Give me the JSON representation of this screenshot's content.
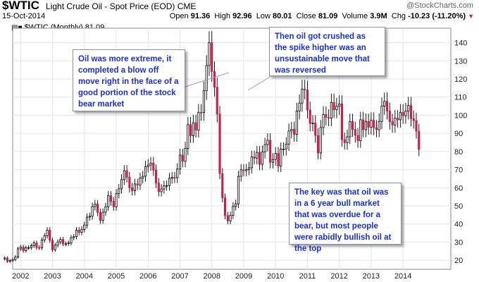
{
  "header": {
    "ticker": "$WTIC",
    "description": "Light Crude Oil - Spot Price (EOD)",
    "exchange": "CME",
    "date": "15-Oct-2014",
    "open_label": "Open",
    "open": "91.36",
    "high_label": "High",
    "high": "92.96",
    "low_label": "Low",
    "low": "80.01",
    "close_label": "Close",
    "close": "81.09",
    "volume_label": "Volume",
    "volume": "3.9M",
    "chg_label": "Chg",
    "chg": "-10.23 (-11.20%)",
    "watermark": "@StockCharts.com",
    "series_label": "$WTIC (Monthly) 81.09",
    "series_icon": "candle-legend-icon"
  },
  "annotations": [
    "Oil was more extreme, it completed a blow off move right in the face of a good portion of the stock bear market",
    "Then oil got crushed as the spike higher was an unsustainable move that was reversed",
    "The key was that oil was in a 6 year bull market that was overdue for a bear, but most people were rabidly bullish oil at the top"
  ],
  "colors": {
    "up": "#ffffff",
    "down": "#cc1e4a",
    "wick": "#000000",
    "grid": "#e6e6e6",
    "note_text": "#1a2fd8"
  },
  "chart_data": {
    "type": "candlestick",
    "period": "monthly",
    "xlabel": "",
    "ylabel": "",
    "x_ticks": [
      "2002",
      "2003",
      "2004",
      "2005",
      "2006",
      "2007",
      "2008",
      "2009",
      "2010",
      "2011",
      "2012",
      "2013",
      "2014"
    ],
    "y_ticks": [
      20,
      30,
      40,
      50,
      60,
      70,
      80,
      90,
      100,
      110,
      120,
      130,
      140
    ],
    "ylim": [
      15,
      148
    ],
    "grid": true,
    "series": [
      {
        "name": "$WTIC",
        "start": "2001-10",
        "close": [
          21.2,
          19.4,
          19.8,
          20.4,
          21.8,
          26.3,
          27.3,
          25.3,
          26.9,
          27.0,
          28.0,
          29.5,
          27.0,
          26.9,
          31.2,
          33.5,
          36.6,
          31.0,
          25.8,
          28.3,
          30.1,
          31.5,
          29.0,
          29.1,
          29.5,
          32.5,
          33.0,
          36.6,
          35.4,
          37.0,
          39.4,
          43.8,
          44.3,
          49.6,
          51.0,
          46.4,
          42.0,
          46.5,
          49.5,
          55.6,
          52.5,
          49.5,
          56.7,
          59.4,
          64.5,
          69.4,
          65.8,
          60.0,
          58.4,
          62.1,
          61.5,
          65.3,
          66.3,
          71.6,
          72.5,
          73.6,
          69.7,
          62.6,
          57.8,
          59.3,
          61.1,
          61.2,
          65.2,
          65.7,
          65.5,
          70.3,
          78.0,
          74.6,
          81.7,
          94.8,
          88.7,
          95.9,
          91.8,
          101.6,
          101.5,
          113.5,
          127.4,
          140.0,
          124.1,
          115.5,
          100.6,
          67.8,
          54.4,
          44.6,
          41.7,
          44.8,
          49.7,
          51.1,
          66.3,
          69.9,
          69.4,
          70.0,
          71.0,
          77.0,
          76.3,
          79.5,
          72.9,
          79.7,
          83.8,
          86.2,
          74.0,
          75.6,
          78.9,
          71.9,
          81.3,
          81.4,
          84.1,
          91.3,
          92.2,
          89.4,
          102.3,
          106.7,
          114.4,
          113.9,
          102.9,
          95.4,
          95.7,
          88.8,
          79.2,
          93.2,
          100.4,
          98.8,
          98.4,
          107.1,
          103.0,
          104.9,
          106.2,
          86.5,
          84.9,
          88.1,
          96.5,
          92.2,
          88.9,
          85.9,
          97.5,
          92.0,
          96.6,
          93.4,
          97.2,
          93.1,
          92.0,
          96.6,
          105.0,
          107.7,
          102.3,
          96.4,
          94.6,
          98.4,
          97.5,
          101.6,
          99.7,
          102.2,
          105.4,
          98.2,
          97.0,
          91.2,
          81.1
        ]
      }
    ]
  }
}
